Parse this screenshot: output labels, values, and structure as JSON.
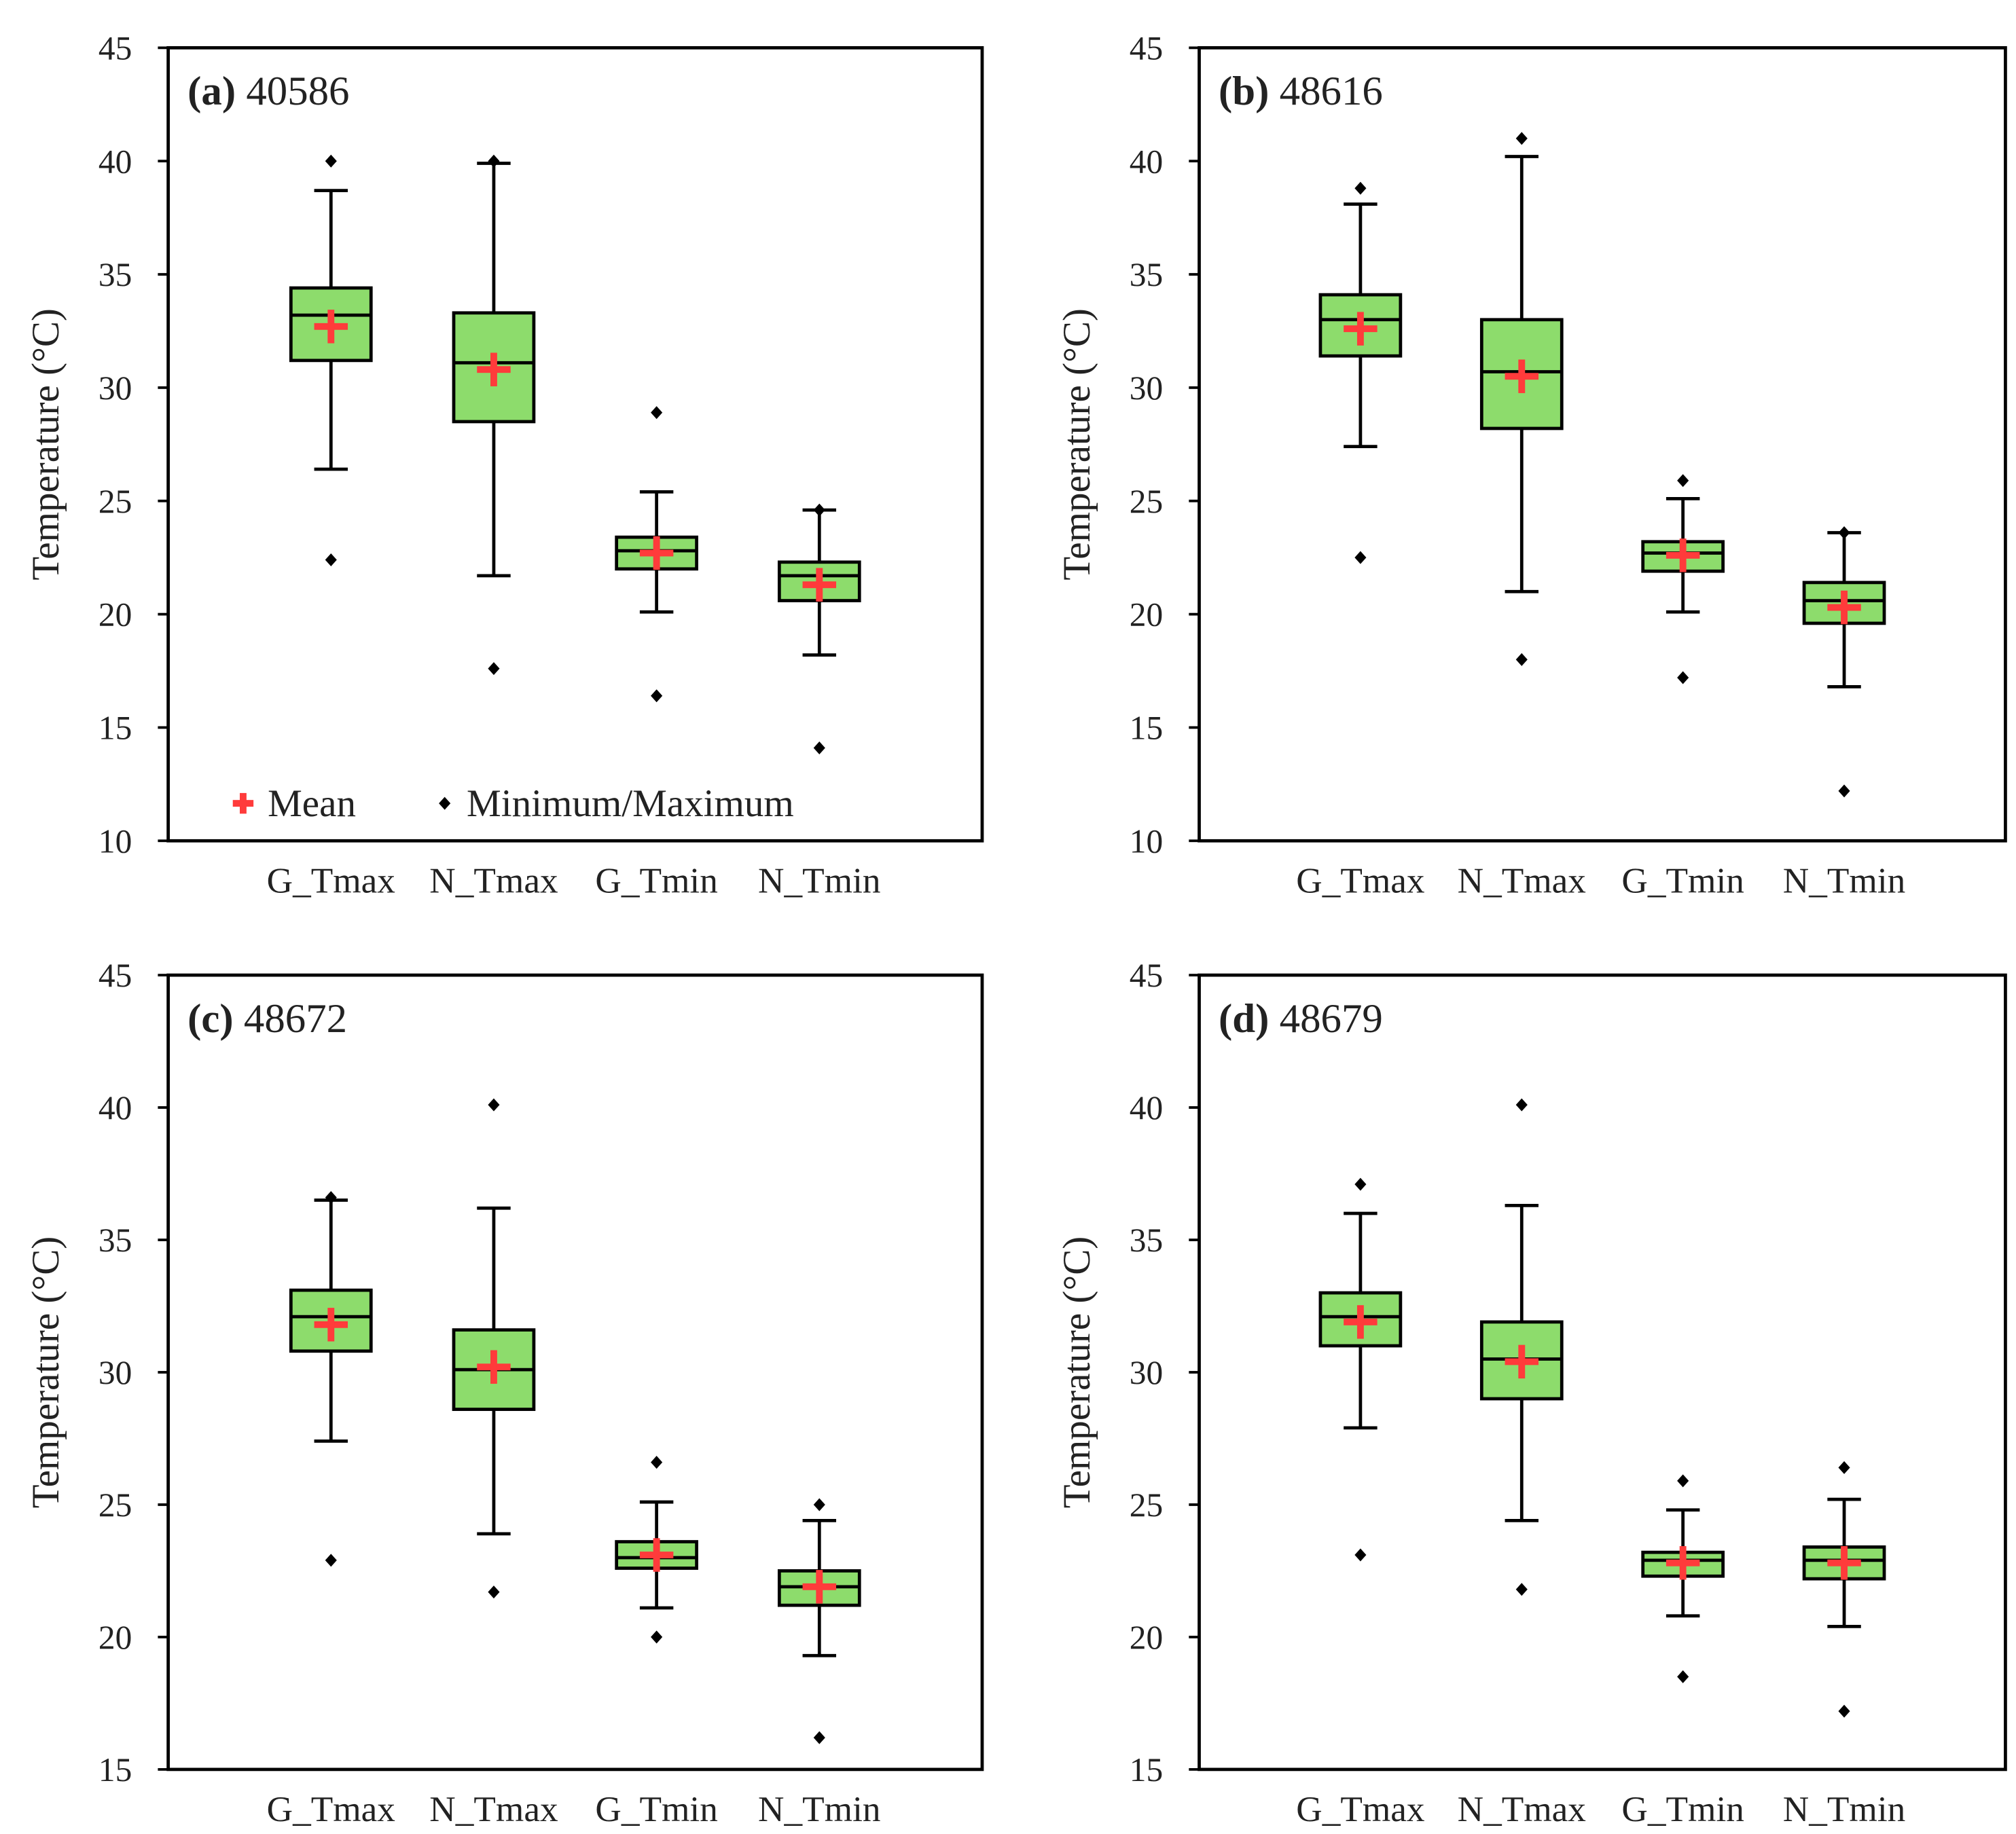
{
  "colors": {
    "box_fill": "#8ddc6c",
    "mean": "#ff3b3b",
    "line": "#000000"
  },
  "legend": {
    "mean_label": "Mean",
    "minmax_label": "Minimum/Maximum",
    "placement": "bottom-inside-panel-a"
  },
  "chart_data": [
    {
      "type": "box",
      "title_bold": "(a)",
      "title": "40586",
      "ylabel": "Temperature (°C)",
      "ylim": [
        10,
        45
      ],
      "yticks": [
        10,
        15,
        20,
        25,
        30,
        35,
        40,
        45
      ],
      "show_legend": true,
      "categories": [
        "G_Tmax",
        "N_Tmax",
        "G_Tmin",
        "N_Tmin"
      ],
      "boxes": [
        {
          "min": 22.4,
          "whisker_low": 26.4,
          "q1": 31.2,
          "median": 33.2,
          "q3": 34.4,
          "whisker_high": 38.7,
          "max": 40.0,
          "mean": 32.7
        },
        {
          "min": 17.6,
          "whisker_low": 21.7,
          "q1": 28.5,
          "median": 31.1,
          "q3": 33.3,
          "whisker_high": 39.9,
          "max": 40.0,
          "mean": 30.8
        },
        {
          "min": 16.4,
          "whisker_low": 20.1,
          "q1": 22.0,
          "median": 22.8,
          "q3": 23.4,
          "whisker_high": 25.4,
          "max": 28.9,
          "mean": 22.7
        },
        {
          "min": 14.1,
          "whisker_low": 18.2,
          "q1": 20.6,
          "median": 21.7,
          "q3": 22.3,
          "whisker_high": 24.6,
          "max": 24.6,
          "mean": 21.3
        }
      ]
    },
    {
      "type": "box",
      "title_bold": "(b)",
      "title": "48616",
      "ylabel": "Temperature (°C)",
      "ylim": [
        10,
        45
      ],
      "yticks": [
        10,
        15,
        20,
        25,
        30,
        35,
        40,
        45
      ],
      "show_legend": false,
      "categories": [
        "G_Tmax",
        "N_Tmax",
        "G_Tmin",
        "N_Tmin"
      ],
      "boxes": [
        {
          "min": 22.5,
          "whisker_low": 27.4,
          "q1": 31.4,
          "median": 33.0,
          "q3": 34.1,
          "whisker_high": 38.1,
          "max": 38.8,
          "mean": 32.6
        },
        {
          "min": 18.0,
          "whisker_low": 21.0,
          "q1": 28.2,
          "median": 30.7,
          "q3": 33.0,
          "whisker_high": 40.2,
          "max": 41.0,
          "mean": 30.5
        },
        {
          "min": 17.2,
          "whisker_low": 20.1,
          "q1": 21.9,
          "median": 22.7,
          "q3": 23.2,
          "whisker_high": 25.1,
          "max": 25.9,
          "mean": 22.6
        },
        {
          "min": 12.2,
          "whisker_low": 16.8,
          "q1": 19.6,
          "median": 20.6,
          "q3": 21.4,
          "whisker_high": 23.6,
          "max": 23.6,
          "mean": 20.3
        }
      ]
    },
    {
      "type": "box",
      "title_bold": "(c)",
      "title": "48672",
      "ylabel": "Temperature (°C)",
      "ylim": [
        15,
        45
      ],
      "yticks": [
        15,
        20,
        25,
        30,
        35,
        40,
        45
      ],
      "show_legend": false,
      "categories": [
        "G_Tmax",
        "N_Tmax",
        "G_Tmin",
        "N_Tmin"
      ],
      "boxes": [
        {
          "min": 22.9,
          "whisker_low": 27.4,
          "q1": 30.8,
          "median": 32.1,
          "q3": 33.1,
          "whisker_high": 36.5,
          "max": 36.6,
          "mean": 31.8
        },
        {
          "min": 21.7,
          "whisker_low": 23.9,
          "q1": 28.6,
          "median": 30.1,
          "q3": 31.6,
          "whisker_high": 36.2,
          "max": 40.1,
          "mean": 30.2
        },
        {
          "min": 20.0,
          "whisker_low": 21.1,
          "q1": 22.6,
          "median": 23.0,
          "q3": 23.6,
          "whisker_high": 25.1,
          "max": 26.6,
          "mean": 23.1
        },
        {
          "min": 16.2,
          "whisker_low": 19.3,
          "q1": 21.2,
          "median": 21.9,
          "q3": 22.5,
          "whisker_high": 24.4,
          "max": 25.0,
          "mean": 21.9
        }
      ]
    },
    {
      "type": "box",
      "title_bold": "(d)",
      "title": "48679",
      "ylabel": "Temperature (°C)",
      "ylim": [
        15,
        45
      ],
      "yticks": [
        15,
        20,
        25,
        30,
        35,
        40,
        45
      ],
      "show_legend": false,
      "categories": [
        "G_Tmax",
        "N_Tmax",
        "G_Tmin",
        "N_Tmin"
      ],
      "boxes": [
        {
          "min": 23.1,
          "whisker_low": 27.9,
          "q1": 31.0,
          "median": 32.1,
          "q3": 33.0,
          "whisker_high": 36.0,
          "max": 37.1,
          "mean": 31.9
        },
        {
          "min": 21.8,
          "whisker_low": 24.4,
          "q1": 29.0,
          "median": 30.5,
          "q3": 31.9,
          "whisker_high": 36.3,
          "max": 40.1,
          "mean": 30.4
        },
        {
          "min": 18.5,
          "whisker_low": 20.8,
          "q1": 22.3,
          "median": 22.9,
          "q3": 23.2,
          "whisker_high": 24.8,
          "max": 25.9,
          "mean": 22.8
        },
        {
          "min": 17.2,
          "whisker_low": 20.4,
          "q1": 22.2,
          "median": 22.9,
          "q3": 23.4,
          "whisker_high": 25.2,
          "max": 26.4,
          "mean": 22.8
        }
      ]
    }
  ]
}
